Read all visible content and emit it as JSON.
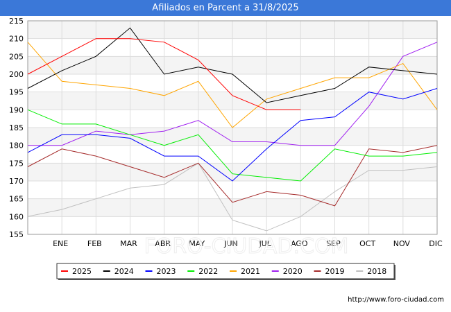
{
  "title": "Afiliados en Parcent a 31/8/2025",
  "source_url": "http://www.foro-ciudad.com",
  "watermark": "FORO-CIUDAD.COM",
  "chart_data": {
    "type": "line",
    "title": "Afiliados en Parcent a 31/8/2025",
    "categories": [
      "",
      "ENE",
      "FEB",
      "MAR",
      "ABR",
      "MAY",
      "JUN",
      "JUL",
      "AGO",
      "SEP",
      "OCT",
      "NOV",
      "DIC"
    ],
    "ylim": [
      155,
      215
    ],
    "yticks": [
      155,
      160,
      165,
      170,
      175,
      180,
      185,
      190,
      195,
      200,
      205,
      210,
      215
    ],
    "grid": true,
    "legend_position": "bottom",
    "series": [
      {
        "name": "2025",
        "color": "#ff0000",
        "values": [
          200,
          205,
          210,
          210,
          209,
          204,
          194,
          190,
          190,
          null,
          null,
          null,
          null
        ]
      },
      {
        "name": "2024",
        "color": "#000000",
        "values": [
          196,
          201,
          205,
          213,
          200,
          202,
          200,
          192,
          194,
          196,
          202,
          201,
          200
        ]
      },
      {
        "name": "2023",
        "color": "#0000ff",
        "values": [
          178,
          183,
          183,
          182,
          177,
          177,
          170,
          179,
          187,
          188,
          195,
          193,
          196
        ]
      },
      {
        "name": "2022",
        "color": "#00ee00",
        "values": [
          190,
          186,
          186,
          183,
          180,
          183,
          172,
          171,
          170,
          179,
          177,
          177,
          178
        ]
      },
      {
        "name": "2021",
        "color": "#ffa500",
        "values": [
          209,
          198,
          197,
          196,
          194,
          198,
          185,
          193,
          196,
          199,
          199,
          203,
          190
        ]
      },
      {
        "name": "2020",
        "color": "#a020f0",
        "values": [
          180,
          180,
          184,
          183,
          184,
          187,
          181,
          181,
          180,
          180,
          191,
          205,
          209
        ]
      },
      {
        "name": "2019",
        "color": "#a52a2a",
        "values": [
          174,
          179,
          177,
          174,
          171,
          175,
          164,
          167,
          166,
          163,
          179,
          178,
          180
        ]
      },
      {
        "name": "2018",
        "color": "#c0c0c0",
        "values": [
          160,
          162,
          165,
          168,
          169,
          175,
          159,
          156,
          160,
          167,
          173,
          173,
          174
        ]
      }
    ]
  }
}
